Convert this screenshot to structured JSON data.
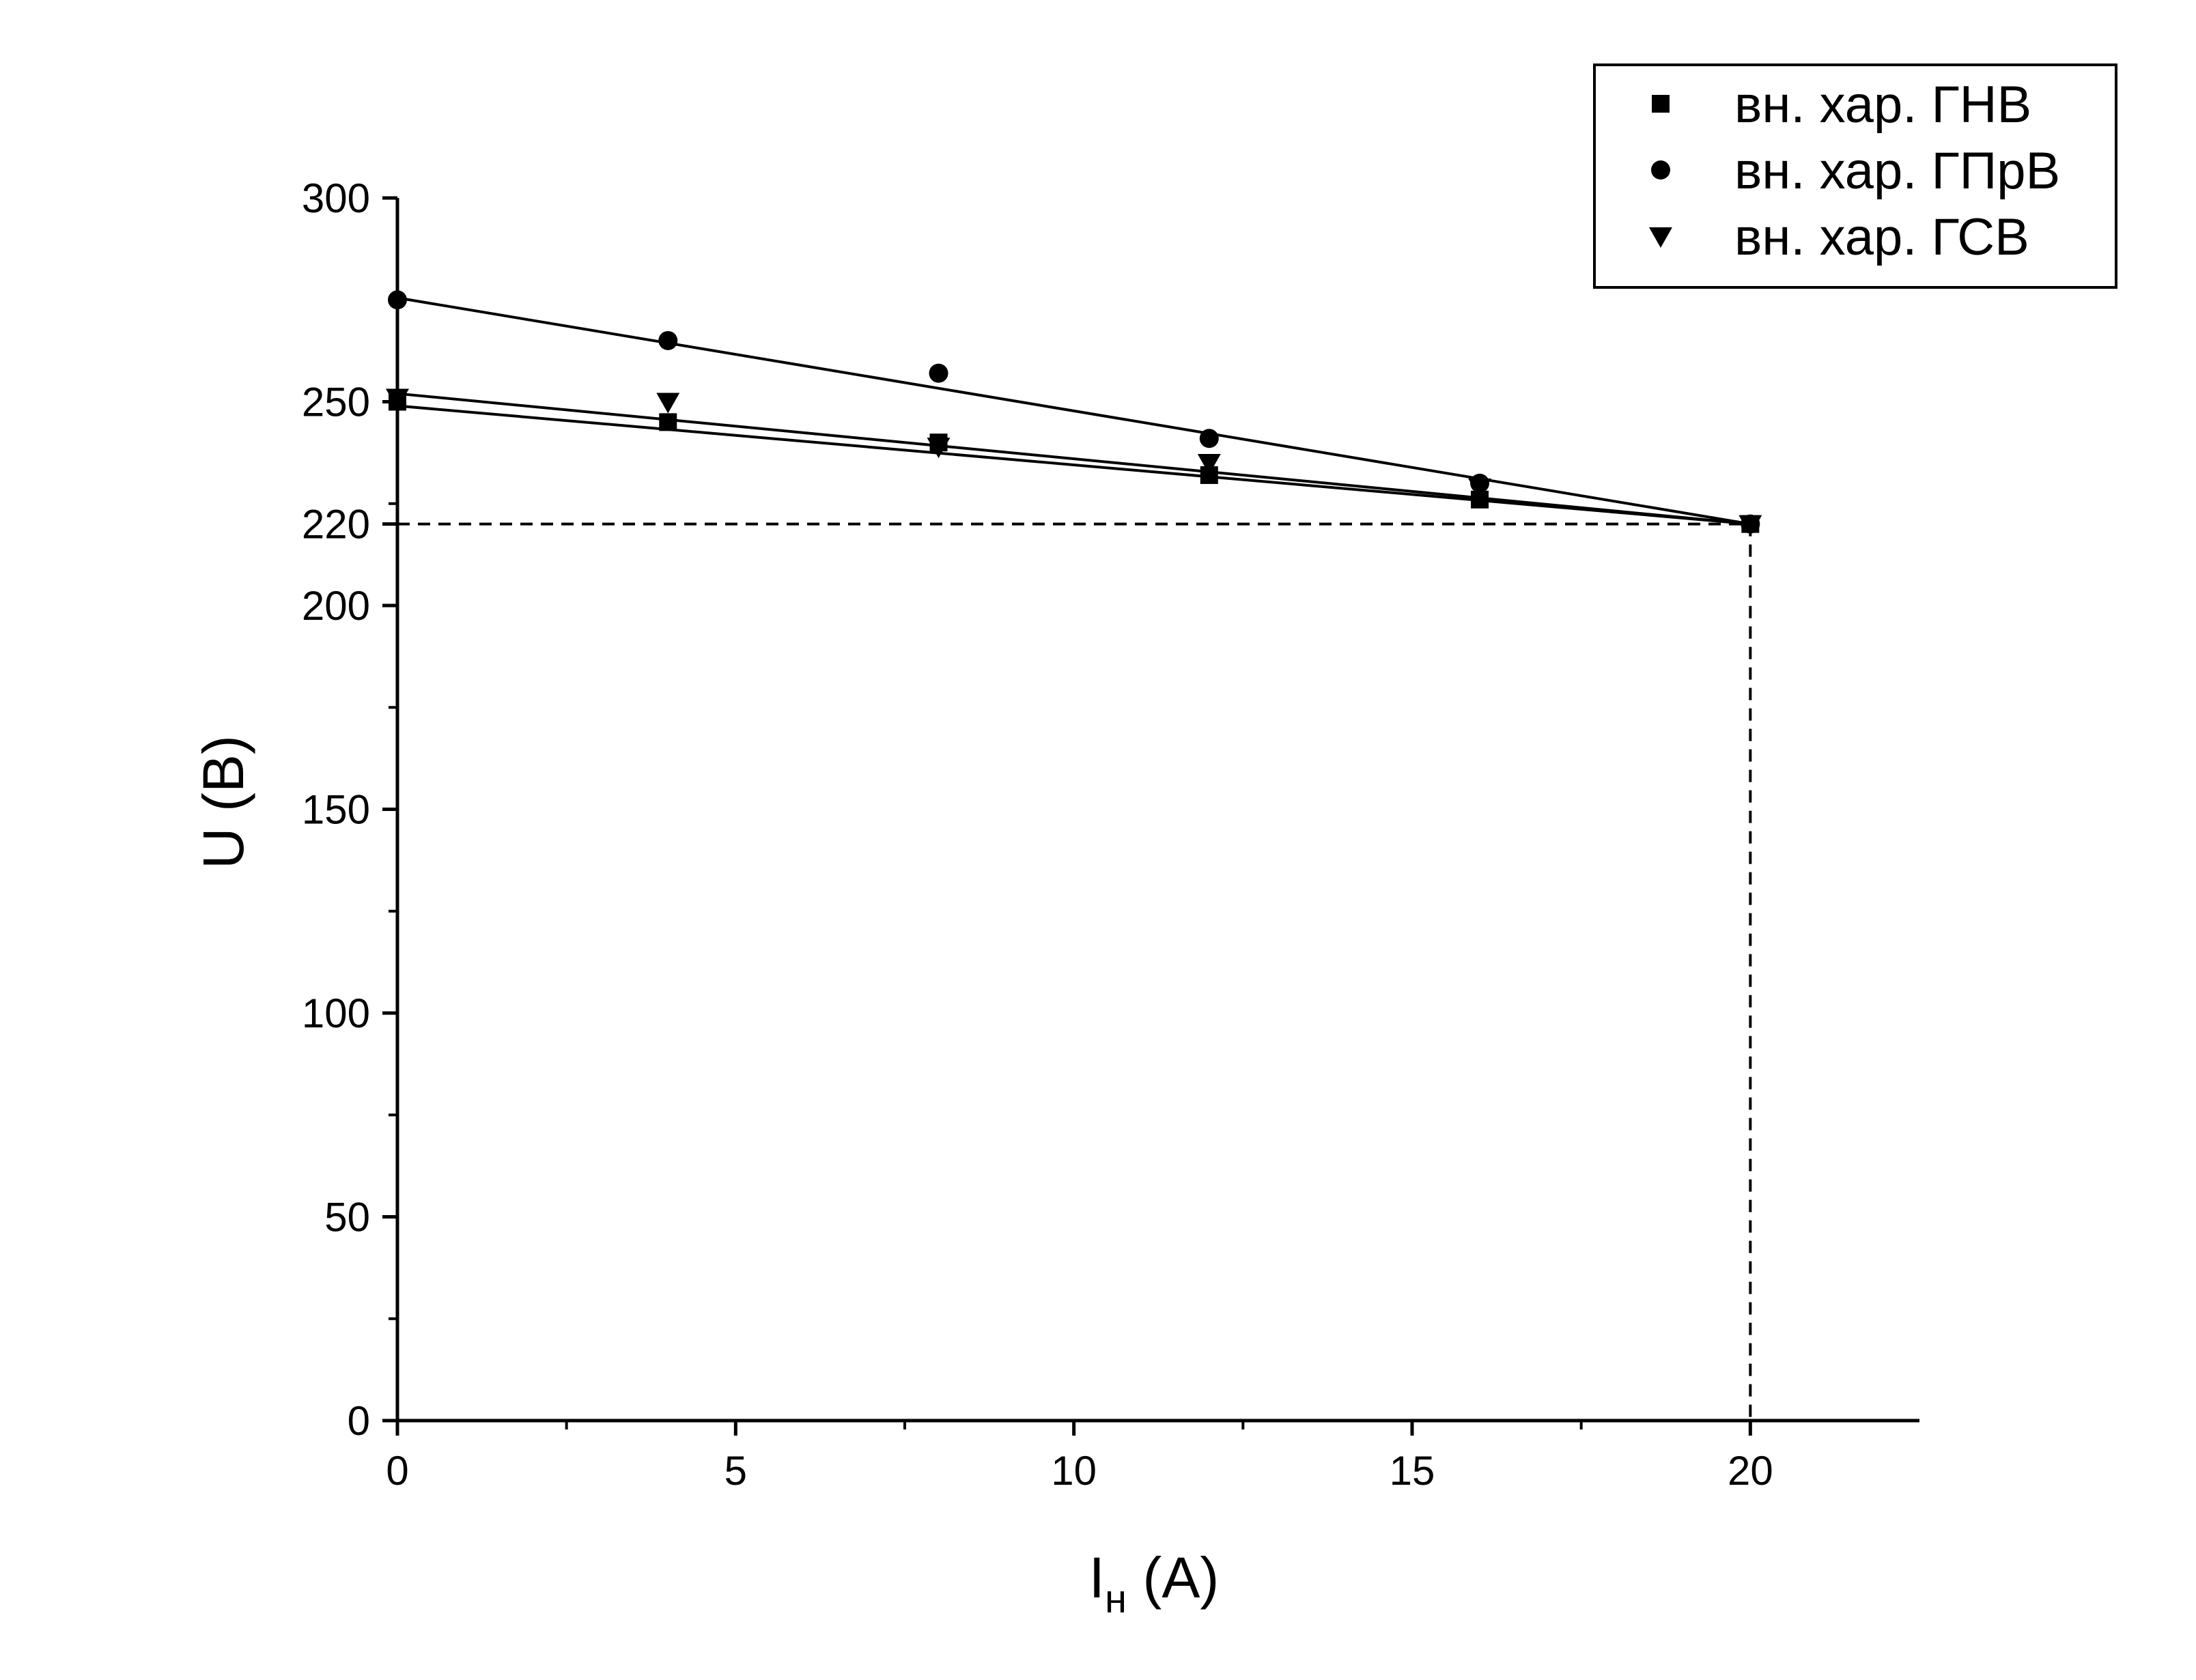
{
  "chart_data": {
    "type": "scatter",
    "title": "",
    "xlabel": "I",
    "xlabel_sub": "н",
    "xlabel_unit": " (А)",
    "ylabel": "U (В)",
    "xlim": [
      0,
      22.5
    ],
    "ylim": [
      0,
      300
    ],
    "x_ticks": [
      0,
      5,
      10,
      15,
      20
    ],
    "y_ticks": [
      0,
      50,
      100,
      150,
      200,
      220,
      250,
      300
    ],
    "x_tick_labels": [
      "0",
      "5",
      "10",
      "15",
      "20"
    ],
    "y_tick_labels": [
      "0",
      "50",
      "100",
      "150",
      "200",
      "220",
      "250",
      "300"
    ],
    "grid": false,
    "legend_position": "top-right",
    "reference_point": {
      "x": 20,
      "y": 220
    },
    "x": [
      0,
      4,
      8,
      12,
      16,
      20
    ],
    "series": [
      {
        "name": "вн. хар. ГНВ",
        "marker": "square",
        "values": [
          250,
          245,
          240,
          232,
          226,
          220
        ],
        "fit": [
          249,
          220
        ]
      },
      {
        "name": "вн. хар. ГПрВ",
        "marker": "circle",
        "values": [
          275,
          265,
          257,
          241,
          230,
          220
        ],
        "fit": [
          275.5,
          220
        ]
      },
      {
        "name": "вн. хар. ГСВ",
        "marker": "triangle-down",
        "values": [
          251,
          250,
          239,
          235,
          229,
          220
        ],
        "fit": [
          252,
          220
        ]
      }
    ],
    "color": "#000000"
  }
}
